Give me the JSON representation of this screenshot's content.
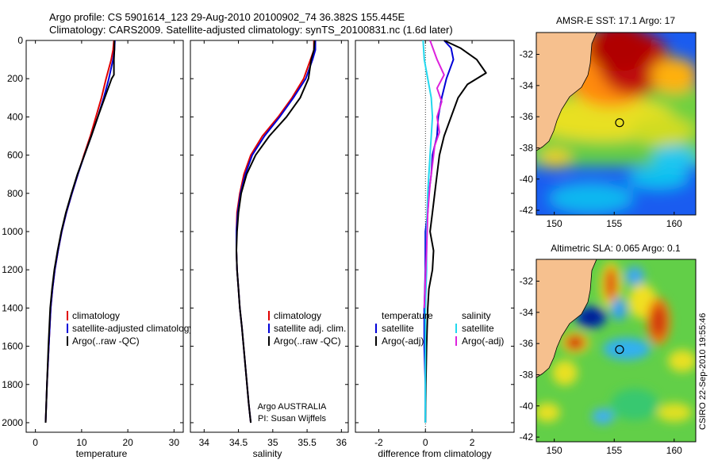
{
  "header": {
    "title_line1": "Argo profile: CS 5901614_123 29-Aug-2010 20100902_74 36.382S 155.445E",
    "title_line2": "Climatology: CARS2009. Satellite-adjusted climatology: synTS_20100831.nc (1.6d later)"
  },
  "timestamp": "CSIRO 22-Sep-2010 19:55:46",
  "colors": {
    "climatology": "#e00000",
    "satellite": "#0000d8",
    "argo": "#000000",
    "sal_satellite": "#22d8ee",
    "sal_argo": "#dd22dd",
    "land": "#f6c08e"
  },
  "chart_data": [
    {
      "type": "line",
      "xlabel": "temperature",
      "ylabel": "",
      "xlim": [
        -2,
        32
      ],
      "ylim": [
        2050,
        0
      ],
      "xticks": [
        0,
        10,
        20,
        30
      ],
      "yticks": [
        0,
        200,
        400,
        600,
        800,
        1000,
        1200,
        1400,
        1600,
        1800,
        2000
      ],
      "legend": [
        "climatology",
        "satellite-adjusted climatology",
        "Argo(..raw -QC)"
      ],
      "series": [
        {
          "name": "climatology",
          "color": "#e00000",
          "x": [
            17,
            16.8,
            16.4,
            15.3,
            14.3,
            13.1,
            11.9,
            10.5,
            9.2,
            7.9,
            6.7,
            5.7,
            4.9,
            4.2,
            3.7,
            3.3,
            2.9,
            2.5,
            2.2
          ],
          "y": [
            0,
            50,
            100,
            200,
            300,
            400,
            500,
            600,
            700,
            800,
            900,
            1000,
            1100,
            1200,
            1300,
            1400,
            1600,
            1800,
            2000
          ]
        },
        {
          "name": "satellite-adjusted climatology",
          "color": "#0000d8",
          "x": [
            17.2,
            17.1,
            16.8,
            15.9,
            14.8,
            13.5,
            12.1,
            10.6,
            9.2,
            7.9,
            6.7,
            5.7,
            4.9,
            4.2,
            3.7,
            3.3,
            2.9,
            2.5,
            2.2
          ],
          "y": [
            0,
            50,
            100,
            200,
            300,
            400,
            500,
            600,
            700,
            800,
            900,
            1000,
            1100,
            1200,
            1300,
            1400,
            1600,
            1800,
            2000
          ]
        },
        {
          "name": "Argo(..raw -QC)",
          "color": "#000000",
          "x": [
            17.1,
            17.1,
            17.0,
            17.0,
            16.5,
            15.0,
            13.5,
            12.1,
            10.6,
            9.1,
            7.8,
            6.6,
            5.6,
            4.8,
            4.1,
            3.6,
            3.2,
            2.8,
            2.5,
            2.2
          ],
          "y": [
            0,
            50,
            100,
            180,
            200,
            300,
            400,
            500,
            600,
            700,
            800,
            900,
            1000,
            1100,
            1200,
            1300,
            1400,
            1600,
            1800,
            2000
          ]
        }
      ]
    },
    {
      "type": "line",
      "xlabel": "salinity",
      "ylabel": "",
      "xlim": [
        33.8,
        36.1
      ],
      "ylim": [
        2050,
        0
      ],
      "xticks": [
        34,
        34.5,
        35,
        35.5,
        36
      ],
      "xticklabels": [
        "34",
        "34.5",
        "35",
        "35.5",
        "36"
      ],
      "yticks": [
        0,
        200,
        400,
        600,
        800,
        1000,
        1200,
        1400,
        1600,
        1800,
        2000
      ],
      "legend": [
        "climatology",
        "satellite adj. clim.",
        "Argo(..raw -QC)"
      ],
      "annotations": [
        "Argo AUSTRALIA",
        "PI: Susan Wijffels"
      ],
      "series": [
        {
          "name": "climatology",
          "color": "#e00000",
          "x": [
            35.6,
            35.6,
            35.55,
            35.45,
            35.28,
            35.08,
            34.85,
            34.68,
            34.58,
            34.52,
            34.48,
            34.47,
            34.47,
            34.48,
            34.5,
            34.52,
            34.55,
            34.6,
            34.65,
            34.68
          ],
          "y": [
            0,
            50,
            100,
            200,
            300,
            400,
            500,
            600,
            700,
            800,
            900,
            1000,
            1100,
            1200,
            1300,
            1400,
            1500,
            1700,
            1900,
            2000
          ]
        },
        {
          "name": "satellite adj. clim.",
          "color": "#0000d8",
          "x": [
            35.62,
            35.62,
            35.58,
            35.48,
            35.3,
            35.1,
            34.88,
            34.7,
            34.6,
            34.53,
            34.49,
            34.47,
            34.47,
            34.48,
            34.5,
            34.52,
            34.55,
            34.6,
            34.65,
            34.68
          ],
          "y": [
            0,
            50,
            100,
            200,
            300,
            400,
            500,
            600,
            700,
            800,
            900,
            1000,
            1100,
            1200,
            1300,
            1400,
            1500,
            1700,
            1900,
            2000
          ]
        },
        {
          "name": "Argo(..raw -QC)",
          "color": "#000000",
          "x": [
            35.61,
            35.6,
            35.56,
            35.52,
            35.4,
            35.2,
            34.95,
            34.75,
            34.62,
            34.54,
            34.5,
            34.48,
            34.47,
            34.48,
            34.5,
            34.52,
            34.55,
            34.6,
            34.65,
            34.68
          ],
          "y": [
            0,
            50,
            100,
            200,
            300,
            400,
            500,
            600,
            700,
            800,
            900,
            1000,
            1100,
            1200,
            1300,
            1400,
            1500,
            1700,
            1900,
            2000
          ]
        }
      ]
    },
    {
      "type": "line",
      "xlabel": "difference from climatology",
      "ylabel": "",
      "xlim": [
        -3,
        3.8
      ],
      "ylim": [
        2050,
        0
      ],
      "xticks": [
        -2,
        0,
        2
      ],
      "yticks": [
        0,
        200,
        400,
        600,
        800,
        1000,
        1200,
        1400,
        1600,
        1800,
        2000
      ],
      "legend_columns": [
        {
          "heading": "temperature",
          "items": [
            "satellite",
            "Argo(-adj)"
          ]
        },
        {
          "heading": "salinity",
          "items": [
            "satellite",
            "Argo(-adj)"
          ]
        }
      ],
      "series": [
        {
          "name": "temperature satellite",
          "color": "#0000d8",
          "x": [
            0.8,
            1.1,
            1.2,
            0.9,
            0.7,
            0.55,
            0.5,
            0.3,
            0.25,
            0.15,
            0.1,
            0.0,
            0.0,
            -0.05,
            -0.05,
            0.0,
            0.0
          ],
          "y": [
            0,
            40,
            100,
            200,
            300,
            400,
            500,
            600,
            700,
            800,
            900,
            1000,
            1200,
            1400,
            1600,
            1800,
            2000
          ]
        },
        {
          "name": "temperature Argo(-adj)",
          "color": "#000000",
          "x": [
            0.8,
            1.5,
            2.2,
            2.6,
            1.8,
            1.4,
            1.1,
            0.8,
            0.6,
            0.5,
            0.4,
            0.3,
            0.2,
            0.35,
            0.3,
            0.15,
            0.1,
            0.05,
            0.02,
            0.0
          ],
          "y": [
            0,
            40,
            100,
            170,
            230,
            300,
            400,
            500,
            600,
            700,
            800,
            900,
            1000,
            1100,
            1200,
            1300,
            1400,
            1600,
            1800,
            2000
          ]
        },
        {
          "name": "salinity satellite",
          "color": "#22d8ee",
          "x": [
            -0.1,
            -0.05,
            0.1,
            0.25,
            0.3,
            0.25,
            0.2,
            0.15,
            0.1,
            0.05,
            0.05,
            0.0,
            0.0,
            0.0,
            0.0,
            0.0
          ],
          "y": [
            0,
            100,
            200,
            300,
            400,
            500,
            600,
            700,
            800,
            1000,
            1200,
            1400,
            1600,
            1800,
            1950,
            2000
          ]
        },
        {
          "name": "salinity Argo(-adj)",
          "color": "#dd22dd",
          "x": [
            0.2,
            0.5,
            0.8,
            0.5,
            0.7,
            0.5,
            0.6,
            0.4,
            0.3,
            0.2,
            0.1,
            0.05,
            0.0,
            -0.05
          ],
          "y": [
            0,
            100,
            180,
            250,
            320,
            400,
            480,
            550,
            650,
            750,
            900,
            1100,
            1250,
            1400
          ]
        }
      ]
    },
    {
      "type": "heatmap",
      "title": "AMSR-E SST: 17.1 Argo: 17",
      "xlim": [
        148.5,
        161.8
      ],
      "ylim": [
        -42.3,
        -30.6
      ],
      "xticks": [
        150,
        155,
        160
      ],
      "yticks": [
        -32,
        -34,
        -36,
        -38,
        -40,
        -42
      ],
      "marker": {
        "lon": 155.445,
        "lat": -36.382
      }
    },
    {
      "type": "heatmap",
      "title": "Altimetric SLA: 0.065 Argo: 0.1",
      "xlim": [
        148.5,
        161.8
      ],
      "ylim": [
        -42.3,
        -30.6
      ],
      "xticks": [
        150,
        155,
        160
      ],
      "yticks": [
        -32,
        -34,
        -36,
        -38,
        -40,
        -42
      ],
      "marker": {
        "lon": 155.445,
        "lat": -36.382
      }
    }
  ]
}
